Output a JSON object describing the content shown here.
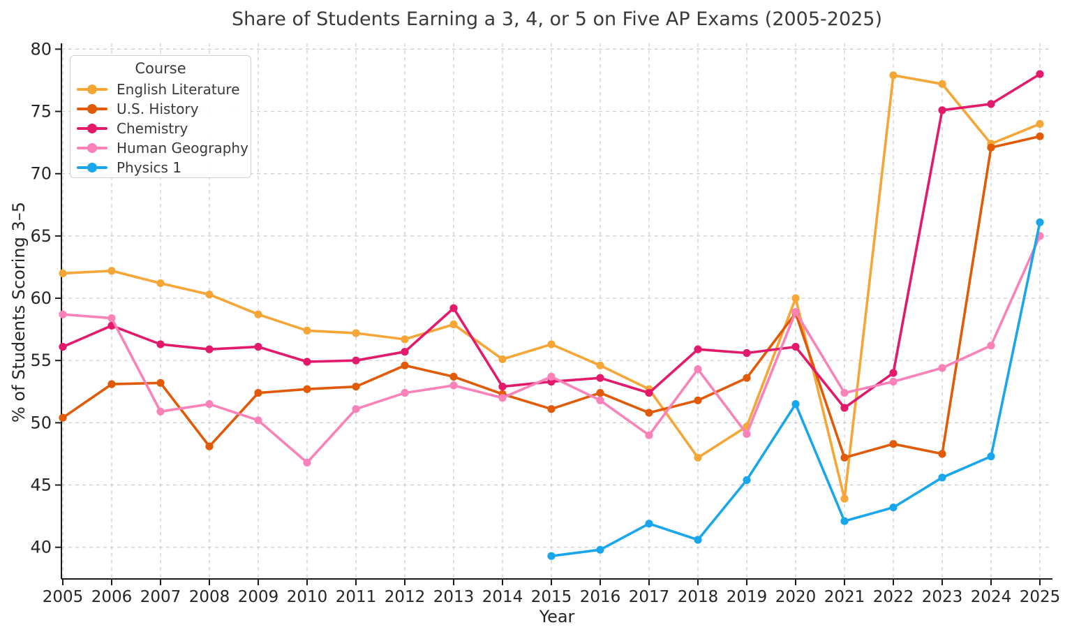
{
  "chart_data": {
    "type": "line",
    "title": "Share of Students Earning a 3, 4, or 5 on Five AP Exams (2005-2025)",
    "xlabel": "Year",
    "ylabel": "% of Students Scoring 3–5",
    "legend_title": "Course",
    "legend_position": "upper left",
    "grid": true,
    "x": [
      2005,
      2006,
      2007,
      2008,
      2009,
      2010,
      2011,
      2012,
      2013,
      2014,
      2015,
      2016,
      2017,
      2018,
      2019,
      2020,
      2021,
      2022,
      2023,
      2024,
      2025
    ],
    "yticks": [
      40,
      45,
      50,
      55,
      60,
      65,
      70,
      75,
      80
    ],
    "ylim": [
      37.5,
      80.5
    ],
    "series": [
      {
        "name": "English Literature",
        "color": "#F5A636",
        "values": [
          62.0,
          62.2,
          61.2,
          60.3,
          58.7,
          57.4,
          57.2,
          56.7,
          57.9,
          55.1,
          56.3,
          54.6,
          52.7,
          47.2,
          49.7,
          60.0,
          43.9,
          77.9,
          77.2,
          72.4,
          74.0
        ]
      },
      {
        "name": "U.S. History",
        "color": "#E05A08",
        "values": [
          50.4,
          53.1,
          53.2,
          48.1,
          52.4,
          52.7,
          52.9,
          54.6,
          53.7,
          52.3,
          51.1,
          52.4,
          50.8,
          51.8,
          53.6,
          58.8,
          47.2,
          48.3,
          47.5,
          72.1,
          73.0
        ]
      },
      {
        "name": "Chemistry",
        "color": "#E3196B",
        "values": [
          56.1,
          57.8,
          56.3,
          55.9,
          56.1,
          54.9,
          55.0,
          55.7,
          59.2,
          52.9,
          53.3,
          53.6,
          52.4,
          55.9,
          55.6,
          56.1,
          51.2,
          54.0,
          75.1,
          75.6,
          78.0
        ]
      },
      {
        "name": "Human Geography",
        "color": "#FB81B9",
        "values": [
          58.7,
          58.4,
          50.9,
          51.5,
          50.2,
          46.8,
          51.1,
          52.4,
          53.0,
          52.0,
          53.7,
          51.8,
          49.0,
          54.3,
          49.1,
          58.9,
          52.4,
          53.3,
          54.4,
          56.2,
          65.0
        ]
      },
      {
        "name": "Physics 1",
        "color": "#19A6EC",
        "values": [
          null,
          null,
          null,
          null,
          null,
          null,
          null,
          null,
          null,
          null,
          39.3,
          39.8,
          41.9,
          40.6,
          45.4,
          51.5,
          42.1,
          43.2,
          45.6,
          47.3,
          66.1
        ]
      }
    ],
    "style": {
      "grid_color": "#cccccc",
      "spine_color": "#1a1a1a",
      "tick_label_color": "#262626",
      "background": "#ffffff"
    }
  }
}
